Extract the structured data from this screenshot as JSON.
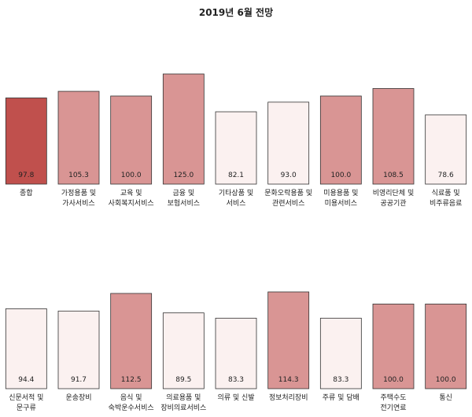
{
  "title": "2019년 6월 전망",
  "colors": {
    "emphasis": "#c0504d",
    "high": "#d99594",
    "low": "#fbf1f0",
    "border": "#333333"
  },
  "chart_data": [
    {
      "type": "bar",
      "title": "2019년 6월 전망",
      "categories": [
        "종합",
        "가정용품 및\n가사서비스",
        "교육 및\n사회복지서비스",
        "금융 및\n보험서비스",
        "기타상품 및\n서비스",
        "문화오락용품 및\n관련서비스",
        "미용용품 및\n미용서비스",
        "비영리단체 및\n공공기관",
        "식료품 및\n비주류음료"
      ],
      "values": [
        97.8,
        105.3,
        100.0,
        125.0,
        82.1,
        93.0,
        100.0,
        108.5,
        78.6
      ],
      "value_labels": [
        "97.8",
        "105.3",
        "100.0",
        "125.0",
        "82.1",
        "93.0",
        "100.0",
        "108.5",
        "78.6"
      ],
      "ylim": [
        0,
        130
      ],
      "grid": false,
      "legend": "none"
    },
    {
      "type": "bar",
      "categories": [
        "신문서적 및\n문구류",
        "운송장비",
        "음식 및\n숙박운수서비스",
        "의료용품 및\n장비의료서비스",
        "의류 및 신발",
        "정보처리장비",
        "주류 및 담배",
        "주택수도\n전기연료",
        "통신"
      ],
      "values": [
        94.4,
        91.7,
        112.5,
        89.5,
        83.3,
        114.3,
        83.3,
        100.0,
        100.0
      ],
      "value_labels": [
        "94.4",
        "91.7",
        "112.5",
        "89.5",
        "83.3",
        "114.3",
        "83.3",
        "100.0",
        "100.0"
      ],
      "ylim": [
        0,
        130
      ],
      "grid": false,
      "legend": "none"
    }
  ]
}
